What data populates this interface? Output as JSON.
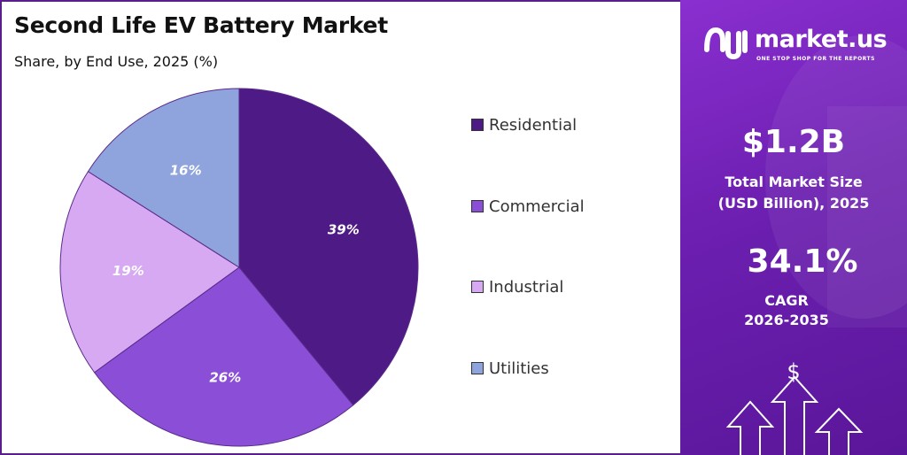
{
  "chart_data": {
    "type": "pie",
    "title": "Second Life EV Battery Market",
    "subtitle": "Share, by End Use, 2025 (%)",
    "categories": [
      "Residential",
      "Commercial",
      "Industrial",
      "Utilities"
    ],
    "values": [
      39,
      26,
      19,
      16
    ],
    "value_labels": [
      "39%",
      "26%",
      "19%",
      "16%"
    ],
    "colors": [
      "#4e1a85",
      "#8a4fd6",
      "#d7a9f2",
      "#8fa4dc"
    ],
    "legend_position": "right"
  },
  "brand": {
    "name": "market.us",
    "tagline": "ONE STOP SHOP FOR THE REPORTS",
    "logo_icon": "market-us-logo-icon"
  },
  "stats": {
    "market_size_value": "$1.2B",
    "market_size_label_line1": "Total Market Size",
    "market_size_label_line2": "(USD Billion), 2025",
    "cagr_value": "34.1%",
    "cagr_label_line1": "CAGR",
    "cagr_label_line2": "2026-2035"
  },
  "decor": {
    "arrows_icon": "growth-arrows-icon",
    "dollar_symbol": "$"
  }
}
